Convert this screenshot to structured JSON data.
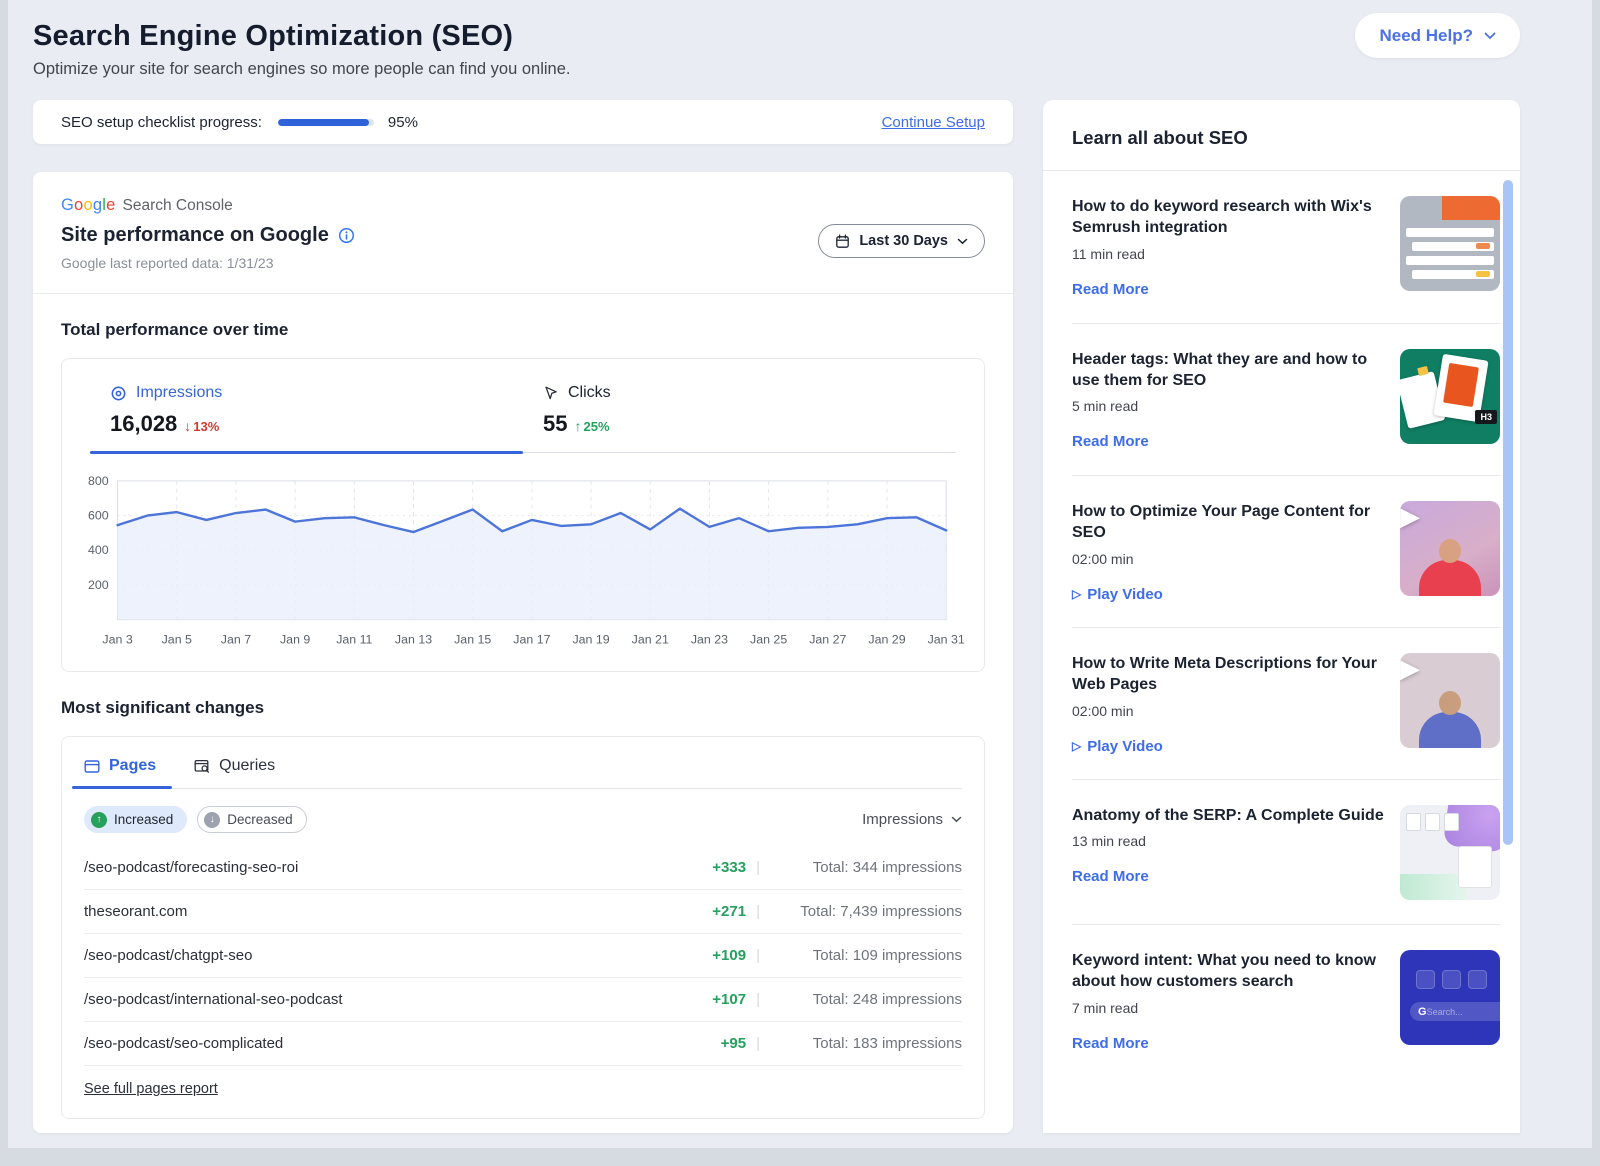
{
  "colors": {
    "accent": "#3465DB",
    "link": "#3E6DE8",
    "green": "#23A15D",
    "red": "#D6382C",
    "chart_line": "#4C74D9",
    "chart_fill": "#E9EFFB",
    "scrollbar": "#A9C4F7",
    "pill_active_bg": "#DFE9FC",
    "google_letters": [
      "#4285F4",
      "#EA4335",
      "#FBBC05",
      "#4285F4",
      "#34A853",
      "#EA4335"
    ]
  },
  "icons": {
    "arrow_up": "↑",
    "arrow_down": "↓",
    "play_outline": "▷",
    "play_solid": "▶"
  },
  "header": {
    "title": "Search Engine Optimization (SEO)",
    "subtitle": "Optimize your site for search engines so more people can find you online.",
    "need_help_label": "Need Help?"
  },
  "checklist": {
    "label": "SEO setup checklist progress:",
    "percent": "95%",
    "progress_value": 95,
    "continue_label": "Continue Setup"
  },
  "performance": {
    "logo_word": "Google",
    "logo_suffix": "Search Console",
    "title": "Site performance on Google",
    "last_reported": "Google last reported data: 1/31/23",
    "range_label": "Last 30 Days",
    "section_title": "Total performance over time",
    "impressions": {
      "label": "Impressions",
      "value": "16,028",
      "delta": "13%",
      "direction": "down"
    },
    "clicks": {
      "label": "Clicks",
      "value": "55",
      "delta": "25%",
      "direction": "up"
    }
  },
  "chart_data": {
    "type": "line",
    "title": "Total performance over time",
    "xlabel": "",
    "ylabel": "",
    "legend": "none",
    "grid": true,
    "ylim": [
      0,
      800
    ],
    "yticks": [
      200,
      400,
      600,
      800
    ],
    "x": [
      "Jan 3",
      "Jan 4",
      "Jan 5",
      "Jan 6",
      "Jan 7",
      "Jan 8",
      "Jan 9",
      "Jan 10",
      "Jan 11",
      "Jan 12",
      "Jan 13",
      "Jan 14",
      "Jan 15",
      "Jan 16",
      "Jan 17",
      "Jan 18",
      "Jan 19",
      "Jan 20",
      "Jan 21",
      "Jan 22",
      "Jan 23",
      "Jan 24",
      "Jan 25",
      "Jan 26",
      "Jan 27",
      "Jan 28",
      "Jan 29",
      "Jan 30",
      "Jan 31"
    ],
    "tick_labels": [
      "Jan 3",
      "Jan 5",
      "Jan 7",
      "Jan 9",
      "Jan 11",
      "Jan 13",
      "Jan 15",
      "Jan 17",
      "Jan 19",
      "Jan 21",
      "Jan 23",
      "Jan 25",
      "Jan 27",
      "Jan 29",
      "Jan 31"
    ],
    "series": [
      {
        "name": "Impressions",
        "values": [
          545,
          600,
          620,
          575,
          615,
          635,
          565,
          585,
          590,
          545,
          505,
          570,
          635,
          510,
          575,
          540,
          550,
          615,
          520,
          640,
          535,
          585,
          510,
          530,
          535,
          550,
          585,
          590,
          515
        ]
      }
    ]
  },
  "changes": {
    "section_title": "Most significant changes",
    "tabs": [
      {
        "label": "Pages"
      },
      {
        "label": "Queries"
      }
    ],
    "filters": [
      {
        "label": "Increased"
      },
      {
        "label": "Decreased"
      }
    ],
    "sort_label": "Impressions",
    "rows": [
      {
        "page": "/seo-podcast/forecasting-seo-roi",
        "change": "+333",
        "total": "Total: 344 impressions"
      },
      {
        "page": "theseorant.com",
        "change": "+271",
        "total": "Total: 7,439 impressions"
      },
      {
        "page": "/seo-podcast/chatgpt-seo",
        "change": "+109",
        "total": "Total: 109 impressions"
      },
      {
        "page": "/seo-podcast/international-seo-podcast",
        "change": "+107",
        "total": "Total: 248 impressions"
      },
      {
        "page": "/seo-podcast/seo-complicated",
        "change": "+95",
        "total": "Total: 183 impressions"
      }
    ],
    "footer_link": "See full pages report"
  },
  "sidebar": {
    "title": "Learn all about SEO",
    "articles": [
      {
        "title": "How to do keyword research with Wix's Semrush integration",
        "meta": "11 min read",
        "action": "Read More",
        "type": "read",
        "thumb": "semrush-table"
      },
      {
        "title": "Header tags: What they are and how to use them for SEO",
        "meta": "5 min read",
        "action": "Read More",
        "type": "read",
        "thumb": "header-tags"
      },
      {
        "title": "How to Optimize Your Page Content for SEO",
        "meta": "02:00 min",
        "action": "Play Video",
        "type": "video",
        "thumb": "video-woman"
      },
      {
        "title": "How to Write Meta Descriptions for Your Web Pages",
        "meta": "02:00 min",
        "action": "Play Video",
        "type": "video",
        "thumb": "video-man"
      },
      {
        "title": "Anatomy of the SERP: A Complete Guide",
        "meta": "13 min read",
        "action": "Read More",
        "type": "read",
        "thumb": "serp-guide"
      },
      {
        "title": "Keyword intent: What you need to know about how customers search",
        "meta": "7 min read",
        "action": "Read More",
        "type": "read",
        "thumb": "google-search"
      }
    ],
    "thumb_text": {
      "h3_chip": "H3",
      "google_g": "G",
      "search_placeholder": "Search..."
    }
  }
}
